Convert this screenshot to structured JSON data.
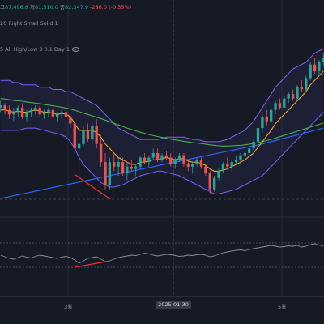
{
  "legend": {
    "ohlc": {
      "open_label": "고",
      "open": "87,496.8",
      "high_label": "저",
      "high": "81,510.0",
      "close_label": "종",
      "close": "82,347.9",
      "change": "-286.0 (-0.35%)"
    },
    "bb_text": "20 Right Small Solid 1",
    "stoch_text": "5 All High/Low 3 0.1 Day 1"
  },
  "x_axis": {
    "tick_left": "3월",
    "cursor": "2025-01-30",
    "tick_right": "5월"
  },
  "colors": {
    "background": "#161a25",
    "up_candle": "#26a69a",
    "down_candle": "#ef5350",
    "bollinger": "#7b61ff",
    "ma_short": "#f5a623",
    "ma_mid": "#4caf50",
    "ma_long": "#2962ff",
    "divergence": "#ff2b2b",
    "oscillator": "#8a8d96"
  },
  "chart_data": [
    {
      "type": "candlestick",
      "series": [
        {
          "name": "price",
          "candles": [
            [
              100,
              103,
              98,
              101
            ],
            [
              101,
              102,
              97,
              99
            ],
            [
              99,
              101,
              95,
              97
            ],
            [
              97,
              100,
              94,
              98
            ],
            [
              98,
              101,
              96,
              100
            ],
            [
              100,
              102,
              95,
              96
            ],
            [
              96,
              99,
              94,
              98
            ],
            [
              98,
              100,
              96,
              99
            ],
            [
              99,
              101,
              97,
              100
            ],
            [
              100,
              101,
              96,
              97
            ],
            [
              97,
              99,
              95,
              98
            ],
            [
              98,
              100,
              96,
              99
            ],
            [
              99,
              100,
              95,
              96
            ],
            [
              96,
              98,
              94,
              97
            ],
            [
              97,
              99,
              95,
              98
            ],
            [
              98,
              99,
              95,
              96
            ],
            [
              96,
              97,
              91,
              93
            ],
            [
              93,
              94,
              80,
              82
            ],
            [
              82,
              86,
              72,
              84
            ],
            [
              84,
              92,
              83,
              90
            ],
            [
              90,
              93,
              85,
              86
            ],
            [
              86,
              94,
              84,
              92
            ],
            [
              92,
              95,
              82,
              84
            ],
            [
              84,
              88,
              74,
              76
            ],
            [
              76,
              80,
              64,
              66
            ],
            [
              66,
              78,
              64,
              76
            ],
            [
              76,
              80,
              72,
              74
            ],
            [
              74,
              78,
              70,
              76
            ],
            [
              76,
              78,
              70,
              71
            ],
            [
              71,
              76,
              68,
              74
            ],
            [
              74,
              77,
              72,
              73
            ],
            [
              73,
              75,
              70,
              74
            ],
            [
              74,
              79,
              73,
              78
            ],
            [
              78,
              80,
              75,
              76
            ],
            [
              76,
              79,
              74,
              78
            ],
            [
              78,
              82,
              77,
              80
            ],
            [
              80,
              82,
              76,
              77
            ],
            [
              77,
              80,
              76,
              79
            ],
            [
              79,
              81,
              77,
              78
            ],
            [
              78,
              80,
              74,
              75
            ],
            [
              75,
              78,
              73,
              77
            ],
            [
              77,
              80,
              76,
              79
            ],
            [
              79,
              80,
              74,
              75
            ],
            [
              75,
              77,
              72,
              74
            ],
            [
              74,
              76,
              71,
              75
            ],
            [
              75,
              78,
              74,
              77
            ],
            [
              77,
              78,
              73,
              74
            ],
            [
              74,
              75,
              70,
              71
            ],
            [
              71,
              72,
              62,
              64
            ],
            [
              64,
              70,
              63,
              69
            ],
            [
              69,
              73,
              68,
              72
            ],
            [
              72,
              76,
              71,
              75
            ],
            [
              75,
              78,
              73,
              74
            ],
            [
              74,
              77,
              72,
              76
            ],
            [
              76,
              79,
              75,
              77
            ],
            [
              77,
              80,
              75,
              79
            ],
            [
              79,
              81,
              77,
              80
            ],
            [
              80,
              83,
              79,
              82
            ],
            [
              82,
              86,
              81,
              85
            ],
            [
              85,
              92,
              84,
              91
            ],
            [
              91,
              98,
              89,
              96
            ],
            [
              96,
              99,
              92,
              94
            ],
            [
              94,
              100,
              93,
              99
            ],
            [
              99,
              103,
              97,
              102
            ],
            [
              102,
              104,
              99,
              100
            ],
            [
              100,
              105,
              99,
              104
            ],
            [
              104,
              107,
              102,
              106
            ],
            [
              106,
              108,
              103,
              104
            ],
            [
              104,
              110,
              103,
              109
            ],
            [
              109,
              112,
              107,
              108
            ],
            [
              108,
              114,
              107,
              113
            ],
            [
              113,
              120,
              112,
              119
            ],
            [
              119,
              122,
              115,
              116
            ],
            [
              116,
              121,
              114,
              120
            ],
            [
              120,
              124,
              118,
              122
            ]
          ]
        },
        {
          "name": "ma_short",
          "values": [
            99,
            99,
            98.5,
            98,
            98.5,
            98,
            98,
            98.5,
            99,
            98.5,
            98,
            98,
            97.5,
            97,
            97.5,
            97,
            96,
            93,
            90,
            90,
            90,
            90,
            89,
            87,
            84,
            82,
            80,
            78,
            77,
            76,
            75,
            75,
            76,
            76,
            76.5,
            77,
            77,
            77.5,
            78,
            77.5,
            77,
            77.5,
            77.5,
            76.5,
            76,
            76,
            75.5,
            74.5,
            73,
            72,
            72,
            72.5,
            73,
            74,
            75,
            76,
            77,
            78.5,
            80,
            82.5,
            85,
            87.5,
            90,
            93,
            95,
            97,
            99,
            101,
            103,
            105,
            107,
            110,
            112,
            114,
            116
          ]
        },
        {
          "name": "ma_mid",
          "values": [
            104,
            103.8,
            103.5,
            103.2,
            103,
            102.8,
            102.5,
            102.2,
            102,
            101.7,
            101.4,
            101.1,
            100.8,
            100.5,
            100.2,
            99.8,
            99.4,
            98.8,
            98.2,
            97.6,
            97,
            96.4,
            95.8,
            95.2,
            94.5,
            93.8,
            93.1,
            92.4,
            91.7,
            91,
            90.4,
            89.8,
            89.2,
            88.7,
            88.2,
            87.7,
            87.3,
            86.9,
            86.5,
            86.1,
            85.8,
            85.5,
            85.2,
            84.9,
            84.6,
            84.4,
            84.2,
            83.9,
            83.6,
            83.4,
            83.2,
            83.1,
            83.1,
            83.2,
            83.3,
            83.4,
            83.6,
            83.9,
            84.2,
            84.6,
            85,
            85.5,
            86,
            86.6,
            87.2,
            87.8,
            88.4,
            89,
            89.6,
            90.2,
            90.8,
            91.4,
            92,
            92.6,
            93.2
          ]
        },
        {
          "name": "ma_long",
          "values": [
            60,
            60.4,
            60.8,
            61.2,
            61.6,
            62,
            62.4,
            62.8,
            63.2,
            63.6,
            64,
            64.4,
            64.8,
            65.2,
            65.6,
            66,
            66.4,
            66.8,
            67.2,
            67.6,
            68,
            68.4,
            68.8,
            69.2,
            69.6,
            70,
            70.4,
            70.8,
            71.2,
            71.6,
            72,
            72.4,
            72.8,
            73.2,
            73.6,
            74,
            74.4,
            74.8,
            75.2,
            75.6,
            76,
            76.4,
            76.8,
            77.2,
            77.6,
            78,
            78.4,
            78.8,
            79.2,
            79.6,
            80,
            80.4,
            80.8,
            81.2,
            81.6,
            82,
            82.4,
            82.8,
            83.2,
            83.6,
            84,
            84.5,
            85,
            85.5,
            86,
            86.5,
            87,
            87.5,
            88,
            88.5,
            89,
            89.5,
            90,
            90.5,
            91
          ]
        },
        {
          "name": "bb_upper",
          "values": [
            112,
            112,
            112,
            111,
            111,
            110,
            110,
            110,
            110,
            109,
            109,
            109,
            108,
            108,
            108,
            107,
            107,
            106,
            105,
            104,
            103,
            102,
            101,
            99,
            97,
            95,
            93,
            91,
            90,
            89,
            88,
            87,
            86,
            86,
            86,
            86,
            86,
            86.5,
            87,
            87,
            87,
            87,
            87,
            86.5,
            86,
            86,
            85.5,
            85,
            85,
            85,
            85,
            85.5,
            86,
            87,
            88,
            89,
            90,
            92,
            94,
            97,
            100,
            103,
            106,
            109,
            111,
            113,
            115,
            117,
            118,
            119,
            120,
            122,
            124,
            125,
            126
          ]
        },
        {
          "name": "bb_lower",
          "values": [
            90,
            90,
            90,
            90,
            90,
            90.5,
            91,
            91,
            91,
            90.5,
            90,
            89.5,
            89,
            88.5,
            88,
            87,
            85,
            82,
            78,
            75,
            73,
            71,
            69,
            67,
            66,
            65,
            65,
            65.5,
            66,
            67,
            68,
            69,
            70,
            70.5,
            71,
            71.5,
            72,
            72,
            71.5,
            71,
            70.5,
            70,
            69,
            68,
            67,
            66,
            65,
            64,
            63,
            62,
            62,
            62.5,
            63,
            63.5,
            64,
            65,
            66,
            67,
            68,
            69,
            70,
            72,
            74,
            76,
            78,
            80,
            82,
            84,
            86,
            88,
            90,
            92,
            94,
            96,
            98
          ]
        }
      ]
    },
    {
      "type": "line",
      "series": [
        {
          "name": "oscillator",
          "values": [
            50,
            46,
            42,
            40,
            44,
            48,
            45,
            43,
            47,
            50,
            48,
            46,
            44,
            42,
            45,
            47,
            44,
            38,
            30,
            36,
            42,
            44,
            46,
            40,
            34,
            36,
            40,
            44,
            46,
            48,
            50,
            49,
            52,
            55,
            53,
            50,
            48,
            50,
            52,
            51,
            49,
            47,
            48,
            50,
            49,
            51,
            52,
            50,
            46,
            48,
            52,
            56,
            58,
            60,
            62,
            63,
            61,
            64,
            66,
            68,
            70,
            72,
            74,
            72,
            70,
            71,
            73,
            72,
            74,
            70,
            72,
            76,
            78,
            75,
            72
          ]
        }
      ]
    }
  ]
}
